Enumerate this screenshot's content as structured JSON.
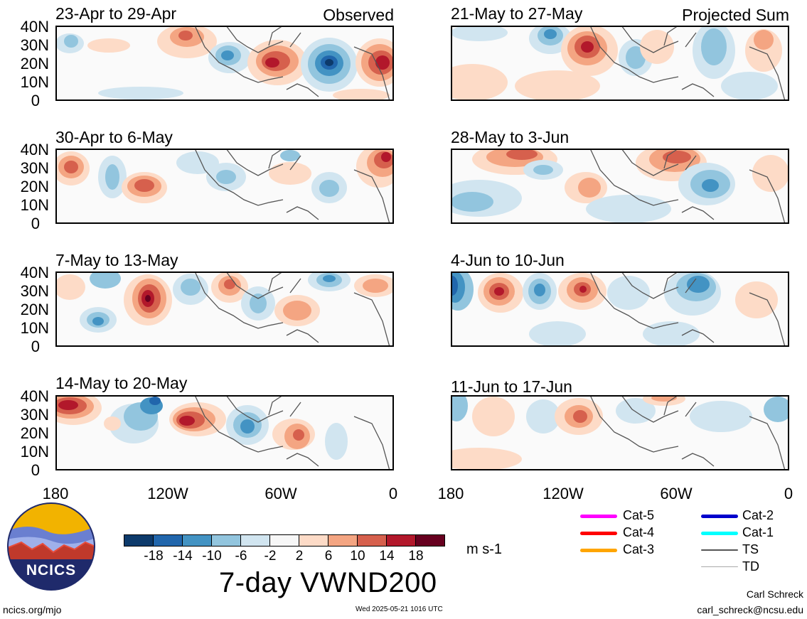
{
  "panels": [
    {
      "title": "23-Apr to 29-Apr",
      "tag": "Observed"
    },
    {
      "title": "30-Apr to 6-May",
      "tag": ""
    },
    {
      "title": "7-May to 13-May",
      "tag": ""
    },
    {
      "title": "14-May to 20-May",
      "tag": ""
    },
    {
      "title": "21-May to 27-May",
      "tag": "Projected Sum"
    },
    {
      "title": "28-May to 3-Jun",
      "tag": ""
    },
    {
      "title": "4-Jun to 10-Jun",
      "tag": ""
    },
    {
      "title": "11-Jun to 17-Jun",
      "tag": ""
    }
  ],
  "lat_labels": [
    "40N",
    "30N",
    "20N",
    "10N",
    "0"
  ],
  "lon_labels": [
    "180",
    "120W",
    "60W",
    "0"
  ],
  "colorbar": {
    "labels": [
      "-18",
      "-14",
      "-10",
      "-6",
      "-2",
      "2",
      "6",
      "10",
      "14",
      "18"
    ],
    "colors": [
      "#0d3a6b",
      "#2166ac",
      "#4393c3",
      "#92c5de",
      "#d1e5f0",
      "#f7f7f7",
      "#fddbc7",
      "#f4a582",
      "#d6604d",
      "#b2182b",
      "#67001f"
    ],
    "units": "m s-1"
  },
  "title": "7-day VWND200",
  "logo_text": "NCICS",
  "footer": {
    "url": "ncics.org/mjo",
    "timestamp": "Wed 2025-05-21 1016 UTC",
    "author": "Carl Schreck",
    "email": "carl_schreck@ncsu.edu"
  },
  "track_legend": [
    {
      "label": "Cat-5",
      "color": "#ff00ff"
    },
    {
      "label": "Cat-4",
      "color": "#ff0000"
    },
    {
      "label": "Cat-3",
      "color": "#ffa500"
    },
    {
      "label": "Cat-2",
      "color": "#0000cc"
    },
    {
      "label": "Cat-1",
      "color": "#00ffff"
    },
    {
      "label": "TS",
      "color": "#555555"
    },
    {
      "label": "TD",
      "color": "#aaaaaa"
    }
  ]
}
